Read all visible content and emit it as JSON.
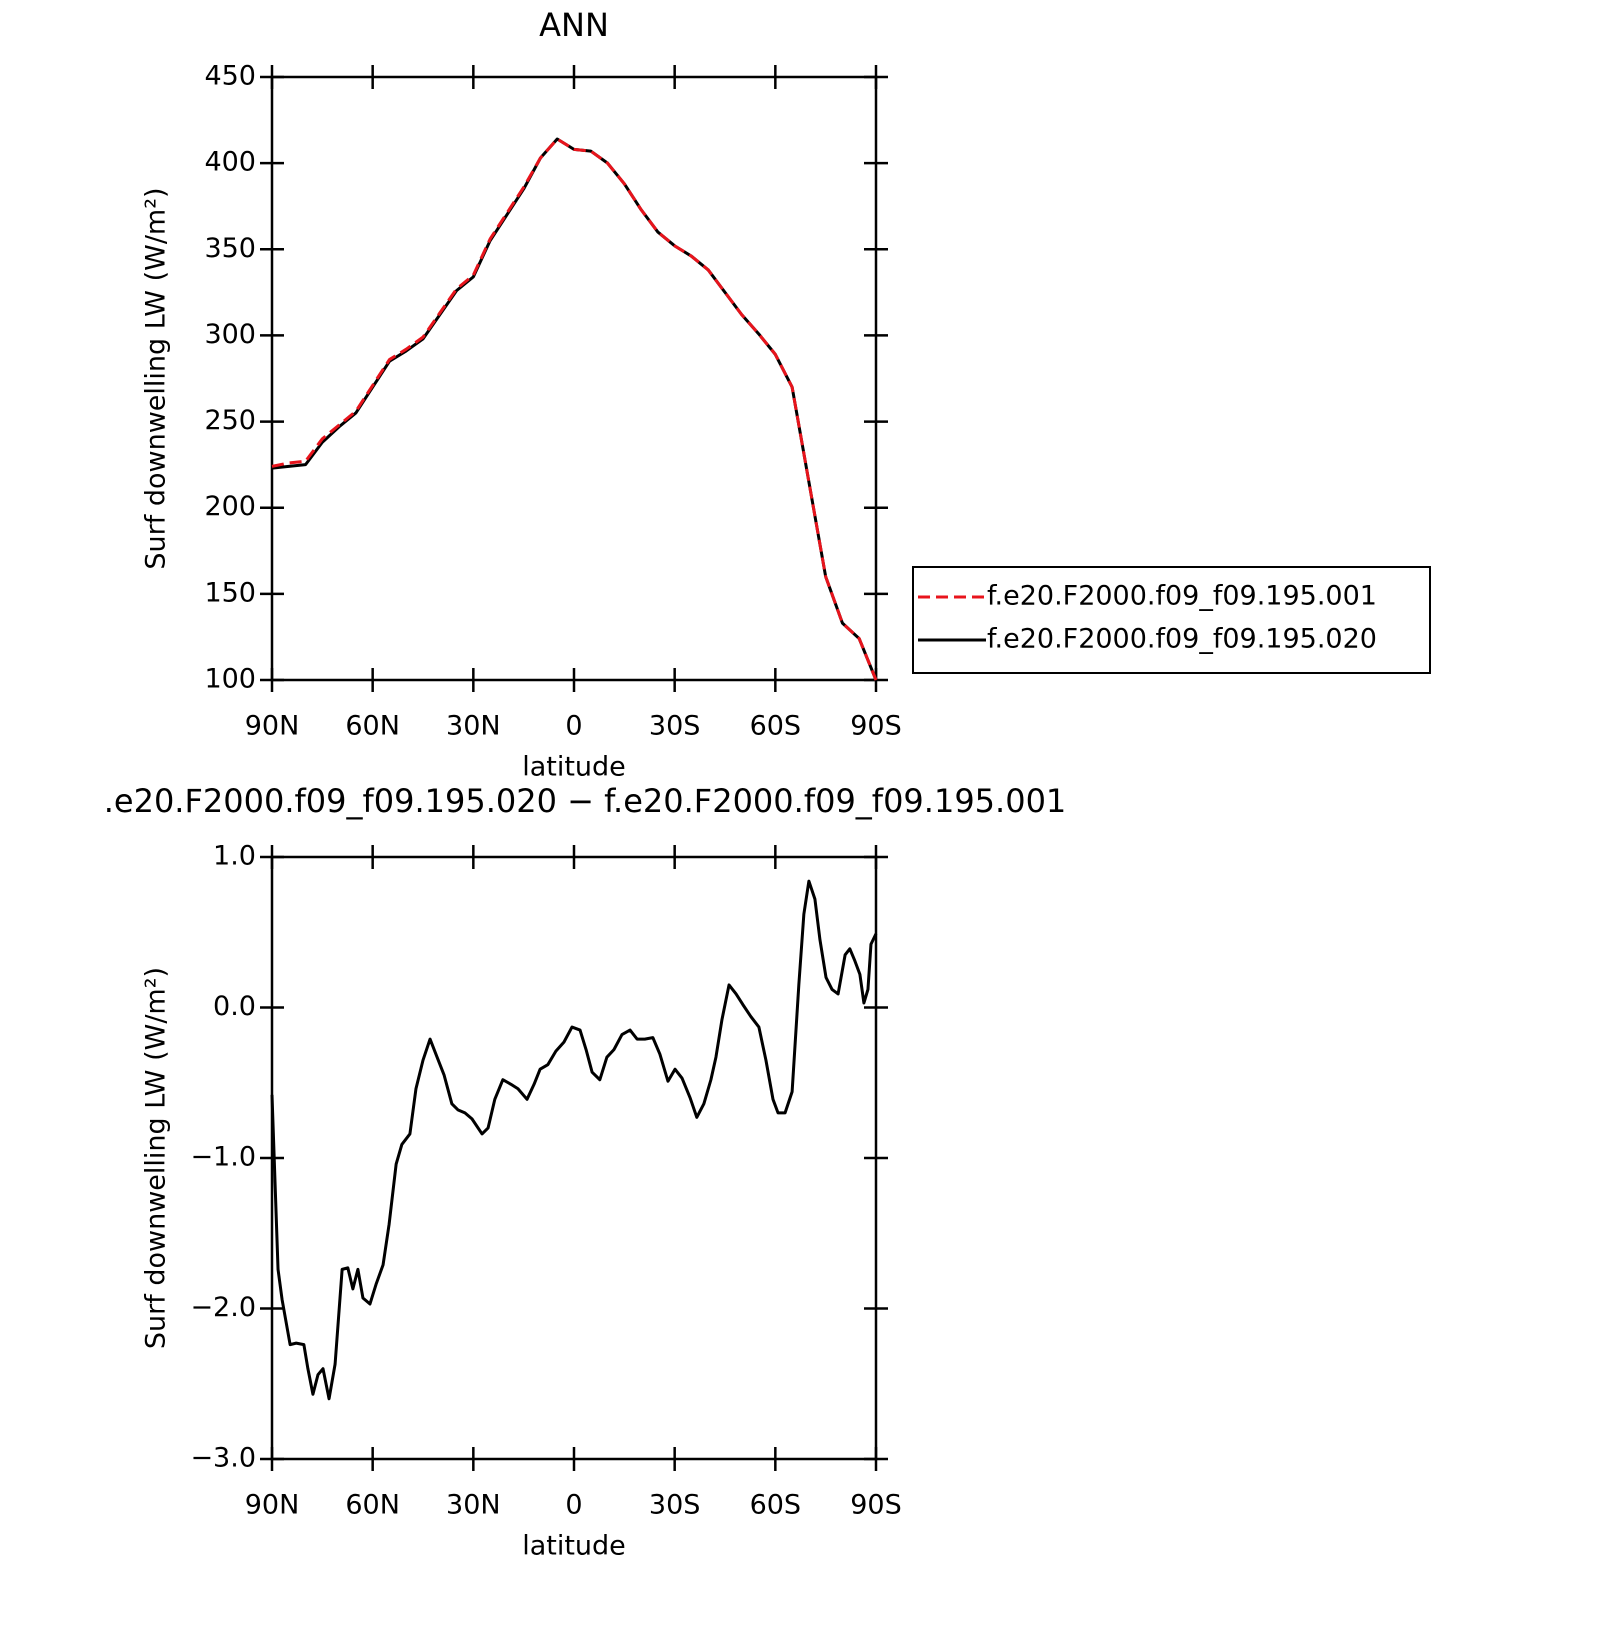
{
  "chart_data": [
    {
      "type": "line",
      "title": "ANN",
      "xlabel": "latitude",
      "ylabel": "Surf downwelling LW (W/m²)",
      "x": [
        90,
        85,
        80,
        75,
        70,
        65,
        60,
        55,
        50,
        45,
        40,
        35,
        30,
        25,
        20,
        15,
        10,
        5,
        0,
        -5,
        -10,
        -15,
        -20,
        -25,
        -30,
        -35,
        -40,
        -45,
        -50,
        -55,
        -60,
        -65,
        -70,
        -75,
        -80,
        -85,
        -90
      ],
      "xlim": [
        90,
        -90
      ],
      "xticks": [
        {
          "value": 90,
          "label": "90N"
        },
        {
          "value": 60,
          "label": "60N"
        },
        {
          "value": 30,
          "label": "30N"
        },
        0,
        {
          "value": -30,
          "label": "30S"
        },
        {
          "value": -60,
          "label": "60S"
        },
        {
          "value": -90,
          "label": "90S"
        }
      ],
      "ylim": [
        100,
        450
      ],
      "yticks": [
        100,
        150,
        200,
        250,
        300,
        350,
        400,
        450
      ],
      "legend": "right",
      "series": [
        {
          "name": "f.e20.F2000.f09_f09.195.001",
          "color": "#e8141c",
          "linestyle": "dashed",
          "values": [
            224,
            226,
            227,
            240,
            248,
            256,
            271,
            286,
            292,
            299,
            313,
            327,
            335,
            356,
            371,
            386,
            403,
            414,
            408,
            407,
            400,
            388,
            373,
            360,
            352,
            346,
            338,
            325,
            312,
            301,
            289,
            270,
            215,
            160,
            133,
            124,
            100
          ]
        },
        {
          "name": "f.e20.F2000.f09_f09.195.020",
          "color": "#000000",
          "linestyle": "solid",
          "values": [
            223,
            224,
            225,
            238,
            247,
            255,
            270,
            285,
            291,
            298,
            312,
            326,
            334,
            355,
            370,
            385,
            403,
            414,
            408,
            407,
            400,
            388,
            373,
            360,
            352,
            346,
            338,
            325,
            312,
            301,
            289,
            270,
            215,
            160,
            133,
            124,
            100
          ]
        }
      ]
    },
    {
      "type": "line",
      "title": ".e20.F2000.f09_f09.195.020 − f.e20.F2000.f09_f09.195.001",
      "xlabel": "latitude",
      "ylabel": "Surf downwelling LW (W/m²)",
      "x": [
        90,
        88.2,
        87,
        84.6,
        82.8,
        80.5,
        79.3,
        77.8,
        76.3,
        74.8,
        73,
        71.2,
        69.1,
        67.4,
        65.9,
        64.4,
        62.9,
        60.8,
        59,
        56.9,
        55.1,
        53,
        51.3,
        48.9,
        47.1,
        45,
        42.9,
        40.8,
        38.7,
        36.4,
        34.6,
        32.5,
        30.4,
        27.4,
        25.6,
        23.6,
        21.2,
        18.8,
        16.7,
        14,
        11.9,
        10.1,
        7.8,
        5.4,
        3,
        0.6,
        -1.8,
        -3.6,
        -5.4,
        -7.7,
        -9.8,
        -11.9,
        -14.3,
        -16.7,
        -18.8,
        -21.1,
        -23.5,
        -25.6,
        -28,
        -30.1,
        -32.2,
        -34.6,
        -36.6,
        -38.7,
        -40.8,
        -42.3,
        -44.1,
        -46.2,
        -48.3,
        -50.3,
        -52.7,
        -55.1,
        -57.2,
        -59.3,
        -60.8,
        -62.9,
        -65,
        -67,
        -68.5,
        -70,
        -71.8,
        -73.3,
        -75.1,
        -76.9,
        -78.7,
        -80.8,
        -82.2,
        -83.7,
        -85.2,
        -86.4,
        -87.6,
        -88.5,
        -90
      ],
      "xlim": [
        90,
        -90
      ],
      "xticks": [
        {
          "value": 90,
          "label": "90N"
        },
        {
          "value": 60,
          "label": "60N"
        },
        {
          "value": 30,
          "label": "30N"
        },
        0,
        {
          "value": -30,
          "label": "30S"
        },
        {
          "value": -60,
          "label": "60S"
        },
        {
          "value": -90,
          "label": "90S"
        }
      ],
      "ylim": [
        -3,
        1
      ],
      "yticks": [
        {
          "value": -3,
          "label": "−3.0"
        },
        {
          "value": -2,
          "label": "−2.0"
        },
        {
          "value": -1,
          "label": "−1.0"
        },
        {
          "value": 0,
          "label": "0.0"
        },
        {
          "value": 1,
          "label": "1.0"
        }
      ],
      "series": [
        {
          "color": "#000000",
          "linestyle": "solid",
          "values": [
            -0.58,
            -1.74,
            -1.94,
            -2.24,
            -2.23,
            -2.24,
            -2.4,
            -2.57,
            -2.44,
            -2.4,
            -2.6,
            -2.37,
            -1.74,
            -1.73,
            -1.87,
            -1.74,
            -1.93,
            -1.97,
            -1.84,
            -1.71,
            -1.44,
            -1.04,
            -0.91,
            -0.84,
            -0.54,
            -0.35,
            -0.21,
            -0.33,
            -0.45,
            -0.64,
            -0.68,
            -0.7,
            -0.74,
            -0.84,
            -0.8,
            -0.61,
            -0.48,
            -0.51,
            -0.54,
            -0.61,
            -0.51,
            -0.41,
            -0.38,
            -0.29,
            -0.23,
            -0.13,
            -0.15,
            -0.28,
            -0.43,
            -0.48,
            -0.33,
            -0.28,
            -0.18,
            -0.15,
            -0.21,
            -0.21,
            -0.2,
            -0.31,
            -0.49,
            -0.41,
            -0.47,
            -0.6,
            -0.73,
            -0.64,
            -0.48,
            -0.33,
            -0.08,
            0.15,
            0.09,
            0.02,
            -0.06,
            -0.13,
            -0.35,
            -0.61,
            -0.7,
            -0.7,
            -0.56,
            0.15,
            0.62,
            0.84,
            0.72,
            0.45,
            0.2,
            0.12,
            0.09,
            0.35,
            0.39,
            0.31,
            0.22,
            0.03,
            0.12,
            0.42,
            0.49
          ]
        }
      ]
    }
  ]
}
